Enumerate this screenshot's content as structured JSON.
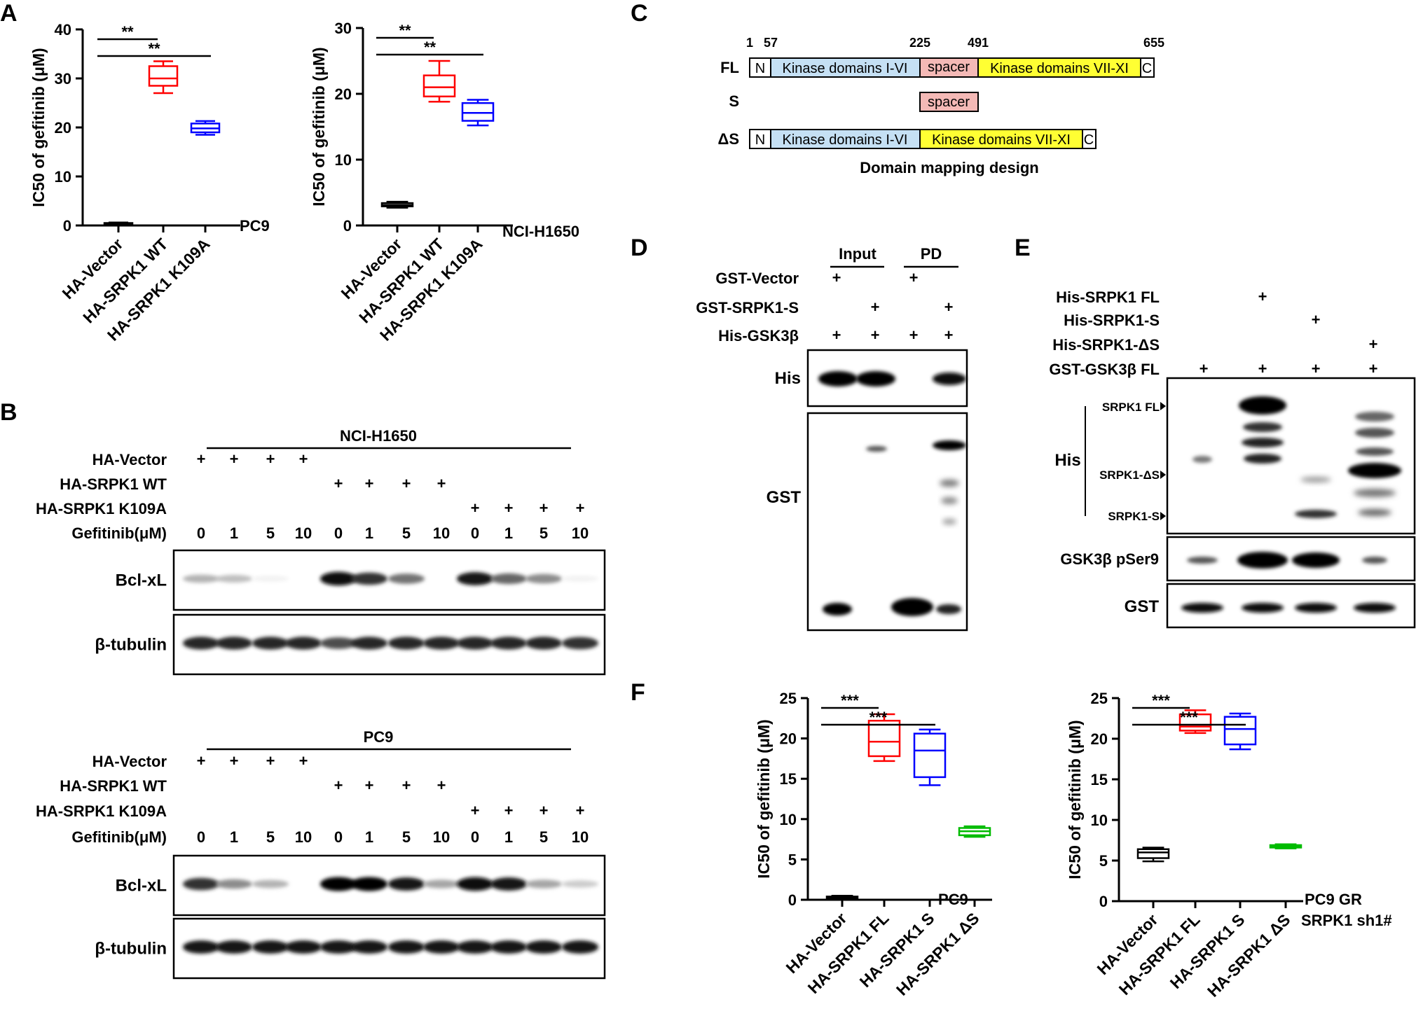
{
  "panels": {
    "A": "A",
    "B": "B",
    "C": "C",
    "D": "D",
    "E": "E",
    "F": "F"
  },
  "chart_data": [
    {
      "id": "A1",
      "type": "box",
      "ylabel": "IC50 of gefitinib (μM)",
      "cell_line": "PC9",
      "ylim": [
        0,
        40
      ],
      "yticks": [
        0,
        10,
        20,
        30,
        40
      ],
      "categories": [
        "HA-Vector",
        "HA-SRPK1 WT",
        "HA-SRPK1 K109A"
      ],
      "boxes": [
        {
          "min": 0.2,
          "q1": 0.3,
          "median": 0.4,
          "q3": 0.5,
          "max": 0.6,
          "color": "#000000"
        },
        {
          "min": 27,
          "q1": 28.5,
          "median": 30,
          "q3": 32.5,
          "max": 33.5,
          "color": "#ff0000"
        },
        {
          "min": 18.5,
          "q1": 19,
          "median": 19.8,
          "q3": 20.8,
          "max": 21.3,
          "color": "#0000ff"
        }
      ],
      "significance": [
        {
          "from": 0,
          "to": 1,
          "label": "**"
        },
        {
          "from": 0,
          "to": 2,
          "label": "**"
        }
      ]
    },
    {
      "id": "A2",
      "type": "box",
      "ylabel": "IC50 of gefitinib (μM)",
      "cell_line": "NCI-H1650",
      "ylim": [
        0,
        30
      ],
      "yticks": [
        0,
        10,
        20,
        30
      ],
      "categories": [
        "HA-Vector",
        "HA-SRPK1 WT",
        "HA-SRPK1 K109A"
      ],
      "boxes": [
        {
          "min": 2.7,
          "q1": 2.9,
          "median": 3.1,
          "q3": 3.4,
          "max": 3.6,
          "color": "#000000"
        },
        {
          "min": 18.8,
          "q1": 19.6,
          "median": 21,
          "q3": 22.8,
          "max": 25,
          "color": "#ff0000"
        },
        {
          "min": 15.2,
          "q1": 15.9,
          "median": 17.1,
          "q3": 18.6,
          "max": 19.1,
          "color": "#0000ff"
        }
      ],
      "significance": [
        {
          "from": 0,
          "to": 1,
          "label": "**"
        },
        {
          "from": 0,
          "to": 2,
          "label": "**"
        }
      ]
    },
    {
      "id": "F1",
      "type": "box",
      "ylabel": "IC50 of gefitinib (μM)",
      "cell_line": "PC9",
      "ylim": [
        0,
        25
      ],
      "yticks": [
        0,
        5,
        10,
        15,
        20,
        25
      ],
      "categories": [
        "HA-Vector",
        "HA-SRPK1 FL",
        "HA-SRPK1 S",
        "HA-SRPK1 ΔS"
      ],
      "boxes": [
        {
          "min": 0.1,
          "q1": 0.2,
          "median": 0.3,
          "q3": 0.4,
          "max": 0.5,
          "color": "#000000"
        },
        {
          "min": 17.2,
          "q1": 17.8,
          "median": 19.6,
          "q3": 22.2,
          "max": 23,
          "color": "#ff0000"
        },
        {
          "min": 14.2,
          "q1": 15.2,
          "median": 18.5,
          "q3": 20.6,
          "max": 21.1,
          "color": "#0000ff"
        },
        {
          "min": 7.8,
          "q1": 8,
          "median": 8.5,
          "q3": 8.9,
          "max": 9.1,
          "color": "#00bb00"
        }
      ],
      "significance": [
        {
          "from": 0,
          "to": 1,
          "label": "***"
        },
        {
          "from": 0,
          "to": 2,
          "label": "***"
        }
      ]
    },
    {
      "id": "F2",
      "type": "box",
      "ylabel": "IC50 of gefitinib (μM)",
      "cell_line": "PC9 GR",
      "cell_line_2": "SRPK1 sh1#",
      "ylim": [
        0,
        25
      ],
      "yticks": [
        0,
        5,
        10,
        15,
        20,
        25
      ],
      "categories": [
        "HA-Vector",
        "HA-SRPK1 FL",
        "HA-SRPK1 S",
        "HA-SRPK1 ΔS"
      ],
      "boxes": [
        {
          "min": 4.9,
          "q1": 5.3,
          "median": 6,
          "q3": 6.4,
          "max": 6.6,
          "color": "#000000"
        },
        {
          "min": 20.7,
          "q1": 21,
          "median": 21.5,
          "q3": 23,
          "max": 23.5,
          "color": "#ff0000"
        },
        {
          "min": 18.7,
          "q1": 19.3,
          "median": 21.2,
          "q3": 22.7,
          "max": 23.1,
          "color": "#0000ff"
        },
        {
          "min": 6.5,
          "q1": 6.6,
          "median": 6.7,
          "q3": 6.9,
          "max": 7,
          "color": "#00bb00"
        }
      ],
      "significance": [
        {
          "from": 0,
          "to": 1,
          "label": "***"
        },
        {
          "from": 0,
          "to": 2,
          "label": "***"
        }
      ]
    }
  ],
  "panel_b": {
    "blocks": [
      {
        "cell_line": "NCI-H1650",
        "rows": [
          "HA-Vector",
          "HA-SRPK1 WT",
          "HA-SRPK1 K109A",
          "Gefitinib(μM)"
        ],
        "doses": [
          "0",
          "1",
          "5",
          "10",
          "0",
          "1",
          "5",
          "10",
          "0",
          "1",
          "5",
          "10"
        ],
        "blots": [
          {
            "label": "Bcl-xL",
            "band": [
              0.3,
              0.25,
              0.05,
              0,
              0.95,
              0.8,
              0.55,
              0,
              0.9,
              0.6,
              0.45,
              0.05
            ]
          },
          {
            "label": "β-tubulin",
            "band": [
              0.85,
              0.85,
              0.85,
              0.85,
              0.7,
              0.85,
              0.85,
              0.85,
              0.85,
              0.85,
              0.85,
              0.8
            ]
          }
        ]
      },
      {
        "cell_line": "PC9",
        "rows": [
          "HA-Vector",
          "HA-SRPK1 WT",
          "HA-SRPK1 K109A",
          "Gefitinib(μM)"
        ],
        "doses": [
          "0",
          "1",
          "5",
          "10",
          "0",
          "1",
          "5",
          "10",
          "0",
          "1",
          "5",
          "10"
        ],
        "blots": [
          {
            "label": "Bcl-xL",
            "band": [
              0.8,
              0.45,
              0.3,
              0,
              1,
              1,
              0.9,
              0.35,
              0.95,
              0.9,
              0.35,
              0.2
            ]
          },
          {
            "label": "β-tubulin",
            "band": [
              0.9,
              0.9,
              0.9,
              0.9,
              0.9,
              0.9,
              0.9,
              0.9,
              0.9,
              0.9,
              0.9,
              0.9
            ]
          }
        ]
      }
    ]
  },
  "panel_c": {
    "title": "Domain mapping design",
    "positions": [
      "1",
      "57",
      "225",
      "491",
      "655"
    ],
    "rows": [
      "FL",
      "S",
      "ΔS"
    ],
    "domains": {
      "n": "N",
      "kinase1": "Kinase domains I-VI",
      "spacer": "spacer",
      "kinase2": "Kinase domains VII-XI",
      "c": "C"
    },
    "colors": {
      "kinase1": "#c5e0f4",
      "spacer": "#f4b9b6",
      "kinase2": "#ffff33",
      "terminal": "#ffffff"
    }
  },
  "panel_d": {
    "groups": [
      "Input",
      "PD"
    ],
    "rows": [
      "GST-Vector",
      "GST-SRPK1-S",
      "His-GSK3β"
    ],
    "plus": "+",
    "blots": [
      "His",
      "GST"
    ]
  },
  "panel_e": {
    "rows": [
      "His-SRPK1 FL",
      "His-SRPK1-S",
      "His-SRPK1-ΔS",
      "GST-GSK3β FL"
    ],
    "plus": "+",
    "blots": [
      "His",
      "GSK3β pSer9",
      "GST"
    ],
    "markers": [
      "SRPK1 FL",
      "SRPK1-ΔS",
      "SRPK1-S"
    ]
  }
}
